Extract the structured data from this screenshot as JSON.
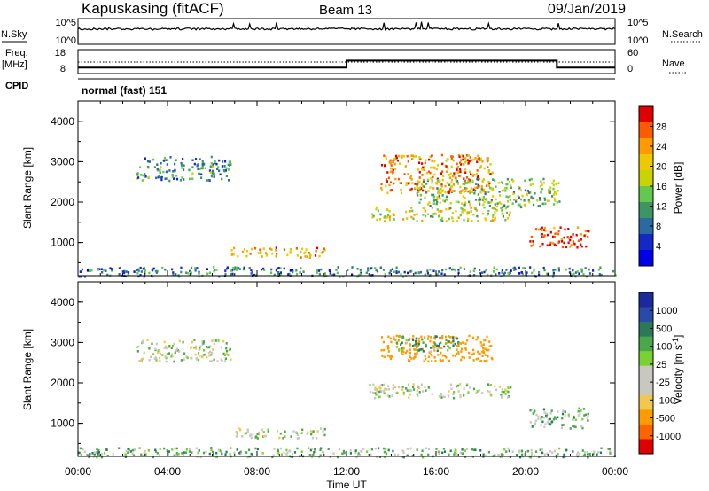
{
  "header": {
    "station": "Kapuskasing (fitACF)",
    "beam": "Beam 13",
    "date": "09/Jan/2019",
    "cpid_label": "CPID",
    "cpid_value": "normal (fast) 151"
  },
  "small_panels": {
    "nsky_label": "N.Sky",
    "nsky_ticks": [
      "10^5",
      "10^0"
    ],
    "nsearch_label": "N.Search",
    "nsearch_ticks": [
      "10^5",
      "10^0"
    ],
    "freq_label_1": "Freq.",
    "freq_label_2": "[MHz]",
    "freq_ticks": [
      "18",
      "8"
    ],
    "nave_label": "Nave",
    "nave_ticks": [
      "60",
      "0"
    ]
  },
  "colorbars": {
    "power": {
      "label": "Power [dB]",
      "ticks": [
        "28",
        "24",
        "20",
        "16",
        "12",
        "8",
        "4"
      ],
      "colors": [
        "#e00000",
        "#ff5a00",
        "#ff9a00",
        "#f0c800",
        "#c8d400",
        "#64c850",
        "#3c9664",
        "#2a6aa0",
        "#1428c8",
        "#0000e8"
      ]
    },
    "velocity": {
      "label": "Velocity [m s",
      "label_sup": "-1",
      "label_end": "]",
      "ticks": [
        "1000",
        "500",
        "100",
        "25",
        "-25",
        "-100",
        "-500",
        "-1000"
      ],
      "colors": [
        "#1a2a9c",
        "#2a4aa8",
        "#2a7a5a",
        "#4aa84a",
        "#7ad232",
        "#c8c8c0",
        "#c8c8c0",
        "#f0c850",
        "#ff9a00",
        "#ff6400",
        "#e00000"
      ]
    }
  },
  "axes": {
    "ylabel": "Slant Range [km]",
    "xlabel": "Time UT",
    "y_ticks": [
      "4000",
      "3000",
      "2000",
      "1000"
    ],
    "x_ticks": [
      "00:00",
      "04:00",
      "08:00",
      "12:00",
      "16:00",
      "20:00",
      "00:00"
    ]
  },
  "chart_data": [
    {
      "type": "heatmap",
      "name": "Power [dB]",
      "x_range_hours": [
        0,
        24
      ],
      "y_range_km": [
        180,
        4500
      ],
      "value_range": [
        0,
        30
      ],
      "regions": [
        {
          "t": [
            2.6,
            6.8
          ],
          "r": [
            2550,
            3150
          ],
          "value": 9
        },
        {
          "t": [
            6.8,
            11.0
          ],
          "r": [
            650,
            900
          ],
          "value": 22
        },
        {
          "t": [
            0.0,
            24.0
          ],
          "r": [
            180,
            420
          ],
          "value": 8
        },
        {
          "t": [
            13.0,
            19.3
          ],
          "r": [
            1550,
            1900
          ],
          "value": 18
        },
        {
          "t": [
            13.5,
            18.5
          ],
          "r": [
            2250,
            3200
          ],
          "value": 24
        },
        {
          "t": [
            15.0,
            21.5
          ],
          "r": [
            1900,
            2600
          ],
          "value": 14
        },
        {
          "t": [
            20.1,
            22.8
          ],
          "r": [
            900,
            1400
          ],
          "value": 28
        }
      ]
    },
    {
      "type": "heatmap",
      "name": "Velocity [m s-1]",
      "x_range_hours": [
        0,
        24
      ],
      "y_range_km": [
        180,
        4500
      ],
      "value_range": [
        -1000,
        1000
      ],
      "regions": [
        {
          "t": [
            2.6,
            6.8
          ],
          "r": [
            2550,
            3100
          ],
          "value": 0
        },
        {
          "t": [
            7.0,
            11.0
          ],
          "r": [
            650,
            900
          ],
          "value": 0
        },
        {
          "t": [
            0.0,
            24.0
          ],
          "r": [
            180,
            420
          ],
          "value": 50
        },
        {
          "t": [
            13.0,
            19.3
          ],
          "r": [
            1650,
            2000
          ],
          "value": 0
        },
        {
          "t": [
            13.5,
            18.5
          ],
          "r": [
            2550,
            3200
          ],
          "value": -200
        },
        {
          "t": [
            14.0,
            17.0
          ],
          "r": [
            2800,
            3200
          ],
          "value": 100
        },
        {
          "t": [
            20.1,
            22.8
          ],
          "r": [
            900,
            1400
          ],
          "value": 50
        }
      ]
    },
    {
      "type": "line",
      "name": "Freq. [MHz]",
      "x_hours": [
        0,
        12.0,
        12.0,
        21.4,
        21.4,
        24
      ],
      "y_mhz": [
        10.5,
        10.5,
        13.4,
        13.4,
        10.5,
        10.5
      ]
    },
    {
      "type": "line",
      "name": "Nave",
      "x_hours": [
        0,
        24
      ],
      "y": [
        29,
        29
      ]
    }
  ]
}
